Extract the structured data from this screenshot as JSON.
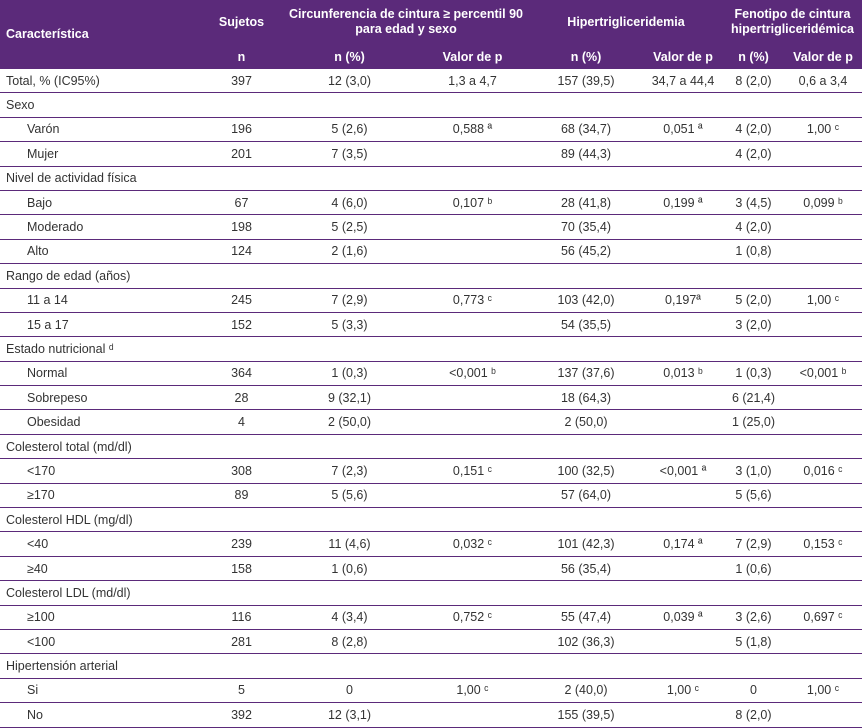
{
  "header": {
    "characteristic": "Característica",
    "subjects": "Sujetos",
    "waist": "Circunferencia de cintura ≥ percentil 90 para edad y sexo",
    "hypertg": "Hipertrigliceridemia",
    "phenotype": "Fenotipo de cintura hipertrigliceridémica",
    "sub_n": "n",
    "sub_npct": "n (%)",
    "sub_p": "Valor de p"
  },
  "rows": [
    {
      "type": "data",
      "label": "Total, % (IC95%)",
      "n": "397",
      "w_n": "12 (3,0)",
      "w_p": "1,3 a 4,7",
      "h_n": "157 (39,5)",
      "h_p": "34,7 a 44,4",
      "f_n": "8 (2,0)",
      "f_p": "0,6 a 3,4"
    },
    {
      "type": "section",
      "label": "Sexo"
    },
    {
      "type": "sub",
      "label": "Varón",
      "n": "196",
      "w_n": "5 (2,6)",
      "w_p": "0,588 ª",
      "h_n": "68 (34,7)",
      "h_p": "0,051 ª",
      "f_n": "4 (2,0)",
      "f_p": "1,00 ᶜ"
    },
    {
      "type": "sub",
      "label": "Mujer",
      "n": "201",
      "w_n": "7 (3,5)",
      "w_p": "",
      "h_n": "89 (44,3)",
      "h_p": "",
      "f_n": "4 (2,0)",
      "f_p": ""
    },
    {
      "type": "section",
      "label": "Nivel de actividad física"
    },
    {
      "type": "sub",
      "label": "Bajo",
      "n": "67",
      "w_n": "4 (6,0)",
      "w_p": "0,107 ᵇ",
      "h_n": "28 (41,8)",
      "h_p": "0,199 ª",
      "f_n": "3 (4,5)",
      "f_p": "0,099 ᵇ"
    },
    {
      "type": "sub",
      "label": "Moderado",
      "n": "198",
      "w_n": "5 (2,5)",
      "w_p": "",
      "h_n": "70 (35,4)",
      "h_p": "",
      "f_n": "4 (2,0)",
      "f_p": ""
    },
    {
      "type": "sub",
      "label": "Alto",
      "n": "124",
      "w_n": "2 (1,6)",
      "w_p": "",
      "h_n": "56 (45,2)",
      "h_p": "",
      "f_n": "1 (0,8)",
      "f_p": ""
    },
    {
      "type": "section",
      "label": "Rango de edad  (años)"
    },
    {
      "type": "sub",
      "label": "11 a 14",
      "n": "245",
      "w_n": "7 (2,9)",
      "w_p": "0,773 ᶜ",
      "h_n": "103 (42,0)",
      "h_p": "0,197ª",
      "f_n": "5 (2,0)",
      "f_p": "1,00 ᶜ"
    },
    {
      "type": "sub",
      "label": "15 a 17",
      "n": "152",
      "w_n": "5 (3,3)",
      "w_p": "",
      "h_n": "54 (35,5)",
      "h_p": "",
      "f_n": "3 (2,0)",
      "f_p": ""
    },
    {
      "type": "section",
      "label": "Estado nutricional ᵈ"
    },
    {
      "type": "sub",
      "label": "Normal",
      "n": "364",
      "w_n": "1 (0,3)",
      "w_p": "<0,001 ᵇ",
      "h_n": "137 (37,6)",
      "h_p": "0,013 ᵇ",
      "f_n": "1 (0,3)",
      "f_p": "<0,001 ᵇ"
    },
    {
      "type": "sub",
      "label": "Sobrepeso",
      "n": "28",
      "w_n": "9 (32,1)",
      "w_p": "",
      "h_n": "18 (64,3)",
      "h_p": "",
      "f_n": "6 (21,4)",
      "f_p": ""
    },
    {
      "type": "sub",
      "label": "Obesidad",
      "n": "4",
      "w_n": "2 (50,0)",
      "w_p": "",
      "h_n": "2 (50,0)",
      "h_p": "",
      "f_n": "1 (25,0)",
      "f_p": ""
    },
    {
      "type": "section",
      "label": "Colesterol total (md/dl)"
    },
    {
      "type": "sub",
      "label": "<170",
      "n": "308",
      "w_n": "7 (2,3)",
      "w_p": "0,151 ᶜ",
      "h_n": "100 (32,5)",
      "h_p": "<0,001 ª",
      "f_n": "3 (1,0)",
      "f_p": "0,016 ᶜ"
    },
    {
      "type": "sub",
      "label": "≥170",
      "n": "89",
      "w_n": "5 (5,6)",
      "w_p": "",
      "h_n": "57 (64,0)",
      "h_p": "",
      "f_n": "5 (5,6)",
      "f_p": ""
    },
    {
      "type": "section",
      "label": "Colesterol HDL (mg/dl)"
    },
    {
      "type": "sub",
      "label": "<40",
      "n": "239",
      "w_n": "11 (4,6)",
      "w_p": "0,032 ᶜ",
      "h_n": "101 (42,3)",
      "h_p": "0,174 ª",
      "f_n": "7 (2,9)",
      "f_p": "0,153 ᶜ"
    },
    {
      "type": "sub",
      "label": "≥40",
      "n": "158",
      "w_n": "1 (0,6)",
      "w_p": "",
      "h_n": "56 (35,4)",
      "h_p": "",
      "f_n": "1 (0,6)",
      "f_p": ""
    },
    {
      "type": "section",
      "label": "Colesterol LDL (md/dl)"
    },
    {
      "type": "sub",
      "label": "≥100",
      "n": "116",
      "w_n": "4 (3,4)",
      "w_p": "0,752 ᶜ",
      "h_n": "55 (47,4)",
      "h_p": "0,039 ª",
      "f_n": "3 (2,6)",
      "f_p": "0,697 ᶜ"
    },
    {
      "type": "sub",
      "label": "<100",
      "n": "281",
      "w_n": "8 (2,8)",
      "w_p": "",
      "h_n": "102 (36,3)",
      "h_p": "",
      "f_n": "5 (1,8)",
      "f_p": ""
    },
    {
      "type": "section",
      "label": "Hipertensión arterial"
    },
    {
      "type": "sub",
      "label": "Si",
      "n": "5",
      "w_n": "0",
      "w_p": "1,00 ᶜ",
      "h_n": "2 (40,0)",
      "h_p": "1,00 ᶜ",
      "f_n": "0",
      "f_p": "1,00 ᶜ"
    },
    {
      "type": "sub",
      "label": "No",
      "n": "392",
      "w_n": "12 (3,1)",
      "w_p": "",
      "h_n": "155 (39,5)",
      "h_p": "",
      "f_n": "8 (2,0)",
      "f_p": ""
    }
  ]
}
